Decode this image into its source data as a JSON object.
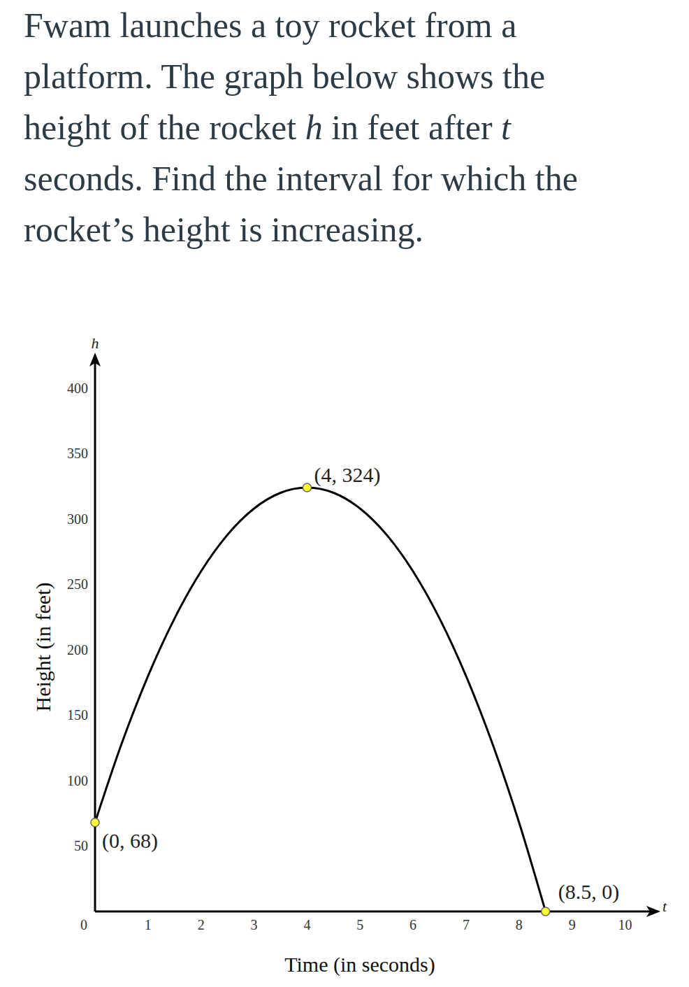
{
  "question": [
    [
      "Fwam launches a toy rocket from a"
    ],
    [
      "platform. The graph below shows the"
    ],
    [
      "height of the rocket ",
      "h",
      " in feet after ",
      "t"
    ],
    [
      "seconds. Find the interval for which the"
    ],
    [
      "rocket’s height is increasing."
    ]
  ],
  "chart_data": {
    "type": "line",
    "x_label": "Time (in seconds)",
    "y_label": "Height (in feet)",
    "axis_symbols": {
      "x": "t",
      "y": "h"
    },
    "x": [
      0,
      0.5,
      1,
      1.5,
      2,
      2.5,
      3,
      3.5,
      4,
      4.5,
      5,
      5.5,
      6,
      6.5,
      7,
      7.5,
      8,
      8.5
    ],
    "values": [
      68,
      128,
      180,
      224,
      260,
      288,
      308,
      320,
      324,
      320,
      308,
      288,
      260,
      224,
      180,
      128,
      68,
      0
    ],
    "color": "#000000",
    "xlim": [
      0,
      10.6
    ],
    "ylim": [
      0,
      424
    ],
    "xticks": [
      0,
      1,
      2,
      3,
      4,
      5,
      6,
      7,
      8,
      9,
      10
    ],
    "yticks": [
      50,
      100,
      150,
      200,
      250,
      300,
      350,
      400
    ],
    "grid": false,
    "annotations": [
      {
        "x": 4,
        "y": 324,
        "text": "(4, 324)",
        "color": "#ffff33"
      },
      {
        "x": 0,
        "y": 68,
        "text": "(0, 68)",
        "color": "#ffff33"
      },
      {
        "x": 8.5,
        "y": 0,
        "text": "(8.5, 0)",
        "color": "#ffff33"
      }
    ]
  }
}
